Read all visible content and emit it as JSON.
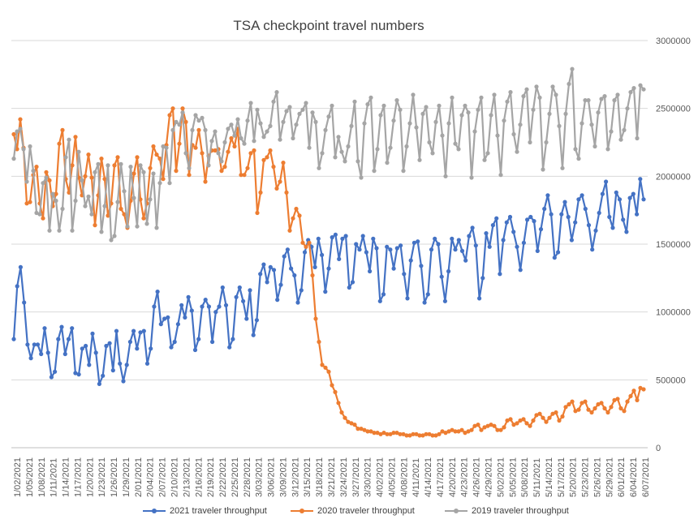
{
  "chart_data": {
    "type": "line",
    "title": "TSA checkpoint travel numbers",
    "xlabel": "",
    "ylabel": "",
    "ylim": [
      0,
      3000000
    ],
    "y_ticks": [
      "0",
      "500000",
      "1000000",
      "1500000",
      "2000000",
      "2500000",
      "3000000"
    ],
    "y_axis_side": "right",
    "grid": "horizontal",
    "legend_position": "bottom",
    "x_tick_labels": [
      "1/02/2021",
      "1/05/2021",
      "1/08/2021",
      "1/11/2021",
      "1/14/2021",
      "1/17/2021",
      "1/20/2021",
      "1/23/2021",
      "1/26/2021",
      "1/29/2021",
      "2/01/2021",
      "2/04/2021",
      "2/07/2021",
      "2/10/2021",
      "2/13/2021",
      "2/16/2021",
      "2/19/2021",
      "2/22/2021",
      "2/25/2021",
      "2/28/2021",
      "3/03/2021",
      "3/06/2021",
      "3/09/2021",
      "3/12/2021",
      "3/15/2021",
      "3/18/2021",
      "3/21/2021",
      "3/24/2021",
      "3/27/2021",
      "3/30/2021",
      "4/02/2021",
      "4/05/2021",
      "4/08/2021",
      "4/11/2021",
      "4/14/2021",
      "4/17/2021",
      "4/20/2021",
      "4/23/2021",
      "4/26/2021",
      "4/29/2021",
      "5/02/2021",
      "5/05/2021",
      "5/08/2021",
      "5/11/2021",
      "5/14/2021",
      "5/17/2021",
      "5/20/2021",
      "5/23/2021",
      "5/26/2021",
      "5/29/2021",
      "6/01/2021",
      "6/04/2021",
      "6/07/2021"
    ],
    "first_date": "1/02/2021",
    "last_date": "6/07/2021",
    "series": [
      {
        "name": "2021 traveler throughput",
        "color": "#4472c4",
        "values": [
          800000,
          1190000,
          1330000,
          1070000,
          760000,
          660000,
          760000,
          760000,
          690000,
          880000,
          700000,
          520000,
          560000,
          800000,
          890000,
          690000,
          800000,
          880000,
          550000,
          540000,
          730000,
          750000,
          610000,
          840000,
          700000,
          470000,
          530000,
          750000,
          770000,
          570000,
          860000,
          620000,
          490000,
          610000,
          780000,
          860000,
          730000,
          850000,
          860000,
          620000,
          730000,
          1040000,
          1150000,
          910000,
          950000,
          960000,
          740000,
          780000,
          910000,
          1050000,
          960000,
          1110000,
          1010000,
          720000,
          800000,
          1040000,
          1090000,
          1040000,
          780000,
          1000000,
          1040000,
          1180000,
          1050000,
          740000,
          800000,
          1110000,
          1180000,
          1080000,
          950000,
          1160000,
          830000,
          940000,
          1280000,
          1350000,
          1220000,
          1330000,
          1310000,
          1090000,
          1200000,
          1410000,
          1460000,
          1320000,
          1270000,
          1070000,
          1160000,
          1440000,
          1530000,
          1480000,
          1330000,
          1540000,
          1420000,
          1150000,
          1320000,
          1550000,
          1570000,
          1390000,
          1540000,
          1560000,
          1180000,
          1220000,
          1500000,
          1460000,
          1560000,
          1440000,
          1300000,
          1540000,
          1470000,
          1080000,
          1130000,
          1480000,
          1460000,
          1320000,
          1470000,
          1490000,
          1280000,
          1100000,
          1380000,
          1510000,
          1520000,
          1340000,
          1070000,
          1130000,
          1460000,
          1540000,
          1500000,
          1260000,
          1080000,
          1300000,
          1540000,
          1460000,
          1530000,
          1450000,
          1380000,
          1560000,
          1620000,
          1490000,
          1100000,
          1250000,
          1580000,
          1480000,
          1640000,
          1690000,
          1280000,
          1530000,
          1660000,
          1700000,
          1590000,
          1480000,
          1310000,
          1510000,
          1680000,
          1700000,
          1670000,
          1450000,
          1610000,
          1760000,
          1860000,
          1720000,
          1400000,
          1440000,
          1720000,
          1810000,
          1700000,
          1530000,
          1660000,
          1830000,
          1860000,
          1760000,
          1640000,
          1460000,
          1600000,
          1730000,
          1870000,
          1960000,
          1700000,
          1620000,
          1880000,
          1830000,
          1680000,
          1590000,
          1840000,
          1870000,
          1720000,
          1980000,
          1830000
        ]
      },
      {
        "name": "2020 traveler throughput",
        "color": "#ed7d31",
        "values": [
          2310000,
          2200000,
          2420000,
          2210000,
          1800000,
          1810000,
          2010000,
          2070000,
          1800000,
          1690000,
          2030000,
          1970000,
          1780000,
          1870000,
          2240000,
          2340000,
          1980000,
          1880000,
          2080000,
          2290000,
          1990000,
          1860000,
          2000000,
          2160000,
          1990000,
          1640000,
          1860000,
          2130000,
          1980000,
          1710000,
          1800000,
          2080000,
          2140000,
          1760000,
          1720000,
          1620000,
          1820000,
          2020000,
          2140000,
          1830000,
          1690000,
          1800000,
          2060000,
          2220000,
          2160000,
          2130000,
          1980000,
          2230000,
          2450000,
          2500000,
          2040000,
          2240000,
          2500000,
          2400000,
          2010000,
          2230000,
          2210000,
          2340000,
          2170000,
          1960000,
          2150000,
          2190000,
          2190000,
          2200000,
          2040000,
          2070000,
          2180000,
          2280000,
          2220000,
          2350000,
          2010000,
          2010000,
          2060000,
          2170000,
          2190000,
          1730000,
          1880000,
          2120000,
          2140000,
          2190000,
          2070000,
          1910000,
          1960000,
          2100000,
          1880000,
          1600000,
          1690000,
          1760000,
          1710000,
          1510000,
          1480000,
          1510000,
          1270000,
          950000,
          780000,
          610000,
          590000,
          560000,
          460000,
          410000,
          330000,
          260000,
          220000,
          190000,
          180000,
          170000,
          140000,
          140000,
          130000,
          120000,
          120000,
          110000,
          110000,
          100000,
          110000,
          100000,
          100000,
          110000,
          110000,
          100000,
          100000,
          90000,
          90000,
          100000,
          100000,
          90000,
          90000,
          100000,
          100000,
          90000,
          90000,
          100000,
          120000,
          110000,
          120000,
          130000,
          120000,
          120000,
          130000,
          110000,
          120000,
          130000,
          160000,
          170000,
          130000,
          150000,
          160000,
          170000,
          160000,
          130000,
          130000,
          150000,
          200000,
          210000,
          170000,
          180000,
          200000,
          210000,
          180000,
          160000,
          200000,
          240000,
          250000,
          220000,
          190000,
          220000,
          250000,
          260000,
          200000,
          230000,
          300000,
          320000,
          340000,
          270000,
          280000,
          330000,
          340000,
          280000,
          260000,
          290000,
          320000,
          330000,
          290000,
          260000,
          300000,
          350000,
          360000,
          290000,
          270000,
          340000,
          380000,
          420000,
          350000,
          440000,
          430000
        ]
      },
      {
        "name": "2019 traveler throughput",
        "color": "#a5a5a5",
        "values": [
          2130000,
          2330000,
          2350000,
          2200000,
          1960000,
          2220000,
          2040000,
          1730000,
          1720000,
          1950000,
          1990000,
          1600000,
          1870000,
          1820000,
          1600000,
          1760000,
          2140000,
          2270000,
          1600000,
          1820000,
          2180000,
          1970000,
          1780000,
          1850000,
          1720000,
          2030000,
          2090000,
          1590000,
          1780000,
          2080000,
          1530000,
          1560000,
          1810000,
          2090000,
          1890000,
          1630000,
          2070000,
          1840000,
          1630000,
          2080000,
          2030000,
          1650000,
          1830000,
          2020000,
          1620000,
          1950000,
          2220000,
          2210000,
          1950000,
          2340000,
          2400000,
          2380000,
          2470000,
          2170000,
          2060000,
          2340000,
          2450000,
          2410000,
          2430000,
          2340000,
          2080000,
          2260000,
          2330000,
          2170000,
          2110000,
          2250000,
          2350000,
          2380000,
          2300000,
          2420000,
          2280000,
          2240000,
          2410000,
          2540000,
          2260000,
          2490000,
          2390000,
          2290000,
          2330000,
          2370000,
          2550000,
          2620000,
          2270000,
          2400000,
          2480000,
          2510000,
          2280000,
          2380000,
          2460000,
          2490000,
          2540000,
          2210000,
          2470000,
          2400000,
          2060000,
          2170000,
          2340000,
          2440000,
          2520000,
          2140000,
          2290000,
          2180000,
          2110000,
          2220000,
          2370000,
          2550000,
          2110000,
          1990000,
          2390000,
          2530000,
          2580000,
          2040000,
          2200000,
          2450000,
          2520000,
          2100000,
          2210000,
          2410000,
          2560000,
          2490000,
          2040000,
          2220000,
          2390000,
          2600000,
          2360000,
          2120000,
          2460000,
          2510000,
          2250000,
          2170000,
          2400000,
          2520000,
          2300000,
          2000000,
          2390000,
          2580000,
          2240000,
          2200000,
          2450000,
          2520000,
          2470000,
          1990000,
          2330000,
          2490000,
          2580000,
          2120000,
          2170000,
          2450000,
          2600000,
          2300000,
          2010000,
          2410000,
          2550000,
          2620000,
          2310000,
          2180000,
          2380000,
          2590000,
          2640000,
          2250000,
          2490000,
          2660000,
          2580000,
          2050000,
          2250000,
          2460000,
          2660000,
          2600000,
          2370000,
          2060000,
          2460000,
          2680000,
          2790000,
          2200000,
          2130000,
          2390000,
          2560000,
          2560000,
          2380000,
          2220000,
          2470000,
          2570000,
          2590000,
          2200000,
          2330000,
          2560000,
          2600000,
          2270000,
          2340000,
          2500000,
          2620000,
          2650000,
          2280000,
          2670000,
          2640000
        ]
      }
    ]
  }
}
